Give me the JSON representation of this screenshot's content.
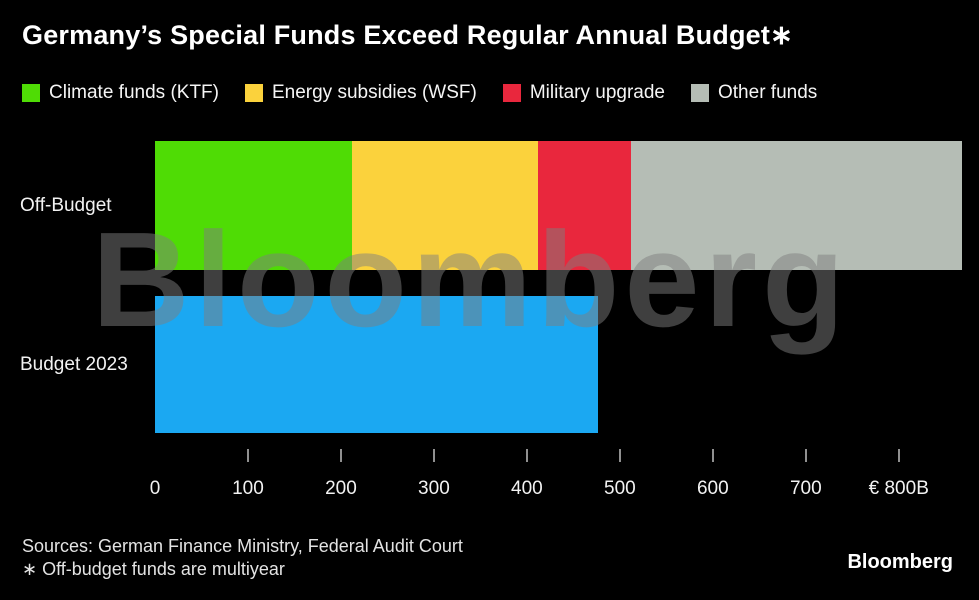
{
  "title": "Germany’s Special Funds Exceed Regular Annual Budget∗",
  "legend": [
    {
      "label": "Climate funds (KTF)",
      "color": "#4FDC05"
    },
    {
      "label": "Energy subsidies (WSF)",
      "color": "#FBD23C"
    },
    {
      "label": "Military upgrade",
      "color": "#E9273D"
    },
    {
      "label": "Other funds",
      "color": "#B5BDB5"
    }
  ],
  "chart_data": {
    "type": "bar",
    "orientation": "horizontal",
    "stacked": true,
    "unit": "billions EUR",
    "xlim": [
      0,
      868
    ],
    "grid": false,
    "legend_position": "top",
    "x_ticks": [
      0,
      100,
      200,
      300,
      400,
      500,
      600,
      700,
      800
    ],
    "x_tick_labels": [
      "0",
      "100",
      "200",
      "300",
      "400",
      "500",
      "600",
      "700",
      "€ 800B"
    ],
    "rows": [
      {
        "category": "Off-Budget",
        "segments": [
          {
            "label": "Climate funds (KTF)",
            "value": 212
          },
          {
            "label": "Energy subsidies (WSF)",
            "value": 200
          },
          {
            "label": "Military upgrade",
            "value": 100
          },
          {
            "label": "Other funds",
            "value": 356
          }
        ]
      },
      {
        "category": "Budget 2023",
        "segments": [
          {
            "label": "Budget 2023",
            "value": 476,
            "color": "#1BA8F2"
          }
        ]
      }
    ]
  },
  "watermark": "Bloomberg",
  "footer": {
    "sources": "Sources: German Finance Ministry, Federal Audit Court",
    "note": "∗ Off-budget funds are multiyear",
    "logo": "Bloomberg"
  }
}
